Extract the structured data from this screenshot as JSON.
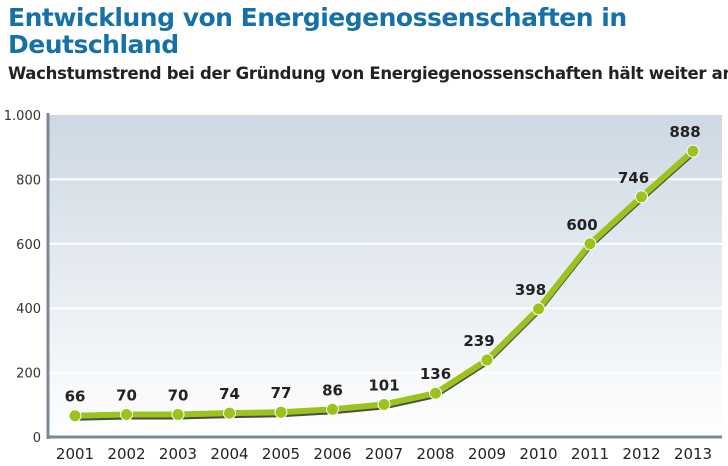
{
  "chart_data": {
    "type": "line",
    "title": "Entwicklung von Energiegenossenschaften in Deutschland",
    "subtitle": "Wachstumstrend bei der Gründung von Energiegenossenschaften hält weiter an",
    "categories": [
      "2001",
      "2002",
      "2003",
      "2004",
      "2005",
      "2006",
      "2007",
      "2008",
      "2009",
      "2010",
      "2011",
      "2012",
      "2013"
    ],
    "values": [
      66,
      70,
      70,
      74,
      77,
      86,
      101,
      136,
      239,
      398,
      600,
      746,
      888
    ],
    "ylim": [
      0,
      1000
    ],
    "yticks": [
      0,
      200,
      400,
      600,
      800,
      1000
    ],
    "ytick_labels": [
      "0",
      "200",
      "400",
      "600",
      "800",
      "1.000"
    ],
    "grid": true,
    "colors": {
      "line": "#9cc21c",
      "shadow": "#4a4f45",
      "title": "#1672a6",
      "axis": "#7b8a99"
    }
  }
}
